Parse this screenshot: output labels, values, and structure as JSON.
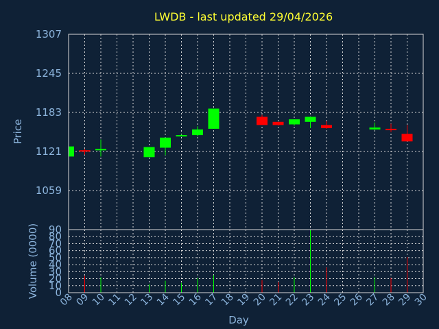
{
  "chart_data": [
    {
      "type": "candlestick",
      "title": "LWDB - last updated 29/04/2026",
      "ylabel": "Price",
      "ylim": [
        997,
        1307
      ],
      "yticks": [
        "1307",
        "1245",
        "1183",
        "1121",
        "1059"
      ],
      "grid": true,
      "colors": {
        "up": "#00ff00",
        "down": "#ff0000"
      },
      "candles": [
        {
          "day": "08",
          "open": 1113,
          "close": 1129,
          "high": 1129,
          "low": 1113
        },
        {
          "day": "09",
          "open": 1123,
          "close": 1121,
          "high": 1125,
          "low": 1116
        },
        {
          "day": "10",
          "open": 1124,
          "close": 1125,
          "high": 1140,
          "low": 1113
        },
        {
          "day": "13",
          "open": 1112,
          "close": 1128,
          "high": 1128,
          "low": 1112
        },
        {
          "day": "14",
          "open": 1127,
          "close": 1143,
          "high": 1143,
          "low": 1115
        },
        {
          "day": "15",
          "open": 1146,
          "close": 1147,
          "high": 1148,
          "low": 1145
        },
        {
          "day": "16",
          "open": 1147,
          "close": 1156,
          "high": 1161,
          "low": 1145
        },
        {
          "day": "17",
          "open": 1157,
          "close": 1189,
          "high": 1189,
          "low": 1157
        },
        {
          "day": "20",
          "open": 1176,
          "close": 1163,
          "high": 1179,
          "low": 1163
        },
        {
          "day": "21",
          "open": 1168,
          "close": 1163,
          "high": 1168,
          "low": 1162
        },
        {
          "day": "22",
          "open": 1164,
          "close": 1172,
          "high": 1172,
          "low": 1162
        },
        {
          "day": "23",
          "open": 1168,
          "close": 1176,
          "high": 1176,
          "low": 1158
        },
        {
          "day": "24",
          "open": 1163,
          "close": 1158,
          "high": 1169,
          "low": 1157
        },
        {
          "day": "27",
          "open": 1156,
          "close": 1159,
          "high": 1167,
          "low": 1155
        },
        {
          "day": "28",
          "open": 1157,
          "close": 1156,
          "high": 1165,
          "low": 1152
        },
        {
          "day": "29",
          "open": 1149,
          "close": 1137,
          "high": 1163,
          "low": 1137
        }
      ]
    },
    {
      "type": "bar",
      "ylabel": "Volume (0000)",
      "xlabel": "Day",
      "ylim": [
        0,
        90
      ],
      "yticks": [
        "90",
        "80",
        "70",
        "60",
        "50",
        "40",
        "30",
        "20",
        "10",
        "0"
      ],
      "xticks": [
        "08",
        "09",
        "10",
        "11",
        "12",
        "13",
        "14",
        "15",
        "16",
        "17",
        "18",
        "19",
        "20",
        "21",
        "22",
        "23",
        "24",
        "25",
        "26",
        "27",
        "28",
        "29",
        "30"
      ],
      "volumes": [
        {
          "day": "09",
          "value": 24,
          "dir": "down"
        },
        {
          "day": "10",
          "value": 22,
          "dir": "up"
        },
        {
          "day": "13",
          "value": 12,
          "dir": "up"
        },
        {
          "day": "14",
          "value": 17,
          "dir": "up"
        },
        {
          "day": "15",
          "value": 14,
          "dir": "up"
        },
        {
          "day": "16",
          "value": 21,
          "dir": "up"
        },
        {
          "day": "17",
          "value": 25,
          "dir": "up"
        },
        {
          "day": "20",
          "value": 18,
          "dir": "down"
        },
        {
          "day": "21",
          "value": 15,
          "dir": "down"
        },
        {
          "day": "22",
          "value": 22,
          "dir": "up"
        },
        {
          "day": "23",
          "value": 89,
          "dir": "up"
        },
        {
          "day": "24",
          "value": 36,
          "dir": "down"
        },
        {
          "day": "27",
          "value": 22,
          "dir": "up"
        },
        {
          "day": "28",
          "value": 21,
          "dir": "down"
        },
        {
          "day": "29",
          "value": 51,
          "dir": "down"
        }
      ]
    }
  ]
}
